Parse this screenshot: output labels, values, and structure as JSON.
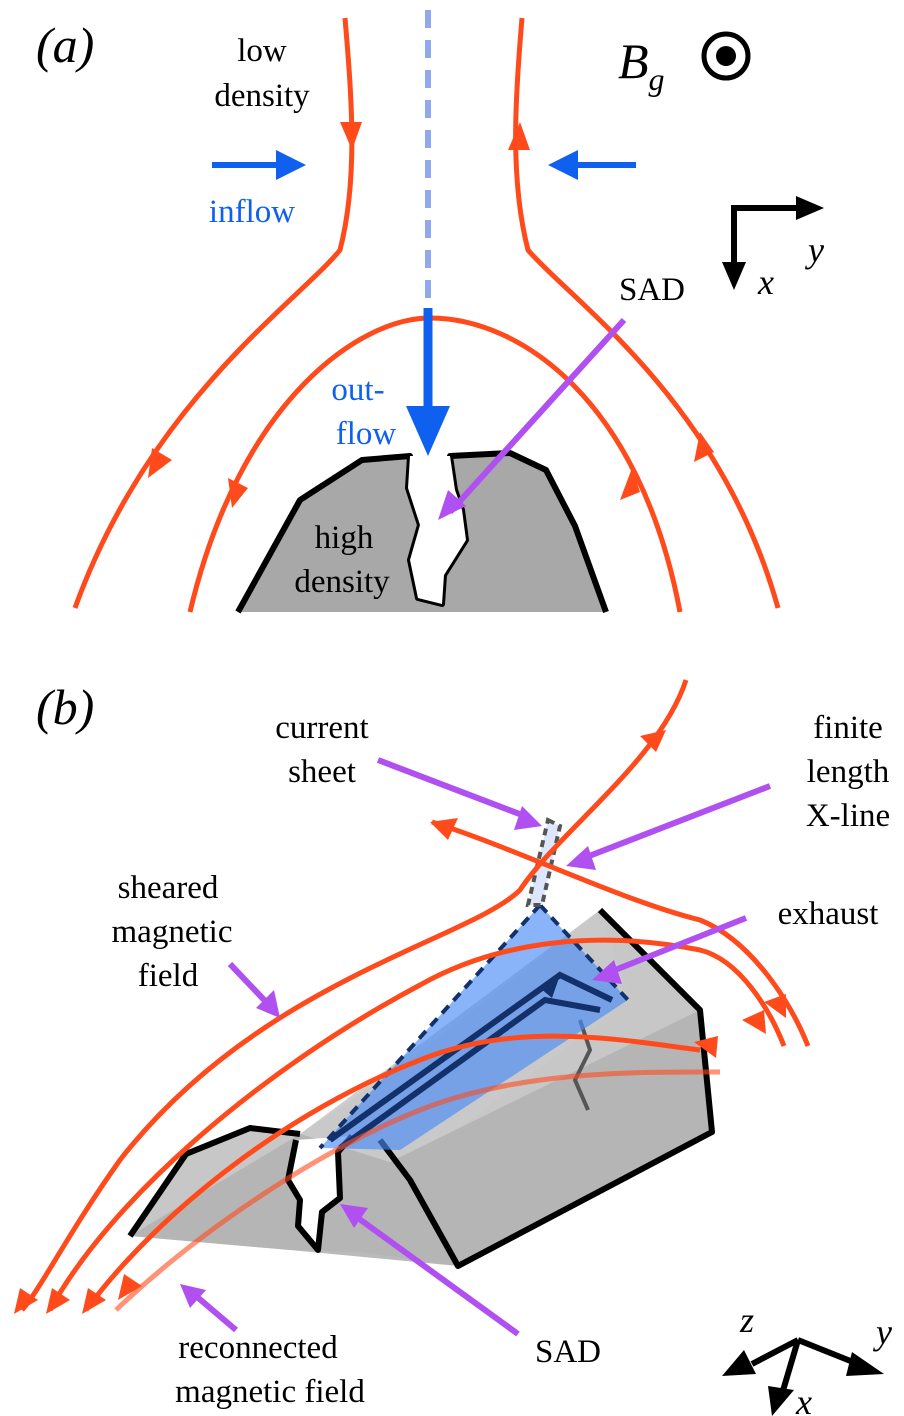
{
  "colors": {
    "field_line": "#ff4a1c",
    "flow_arrow": "#1060f0",
    "dashed_line": "#8fa8ee",
    "pointer": "#b050f0",
    "density": "#a8a8a8",
    "exhaust": "#4a8cf8"
  },
  "panel_a": {
    "label": "(a)",
    "low_density": [
      "low",
      "density"
    ],
    "inflow": "inflow",
    "outflow": [
      "out-",
      "flow"
    ],
    "high_density": [
      "high",
      "density"
    ],
    "sad": "SAD",
    "guide_field": "B",
    "guide_field_sub": "g",
    "axis_x": "x",
    "axis_y": "y"
  },
  "panel_b": {
    "label": "(b)",
    "current_sheet": [
      "current",
      "sheet"
    ],
    "x_line": [
      "finite",
      "length",
      "X-line"
    ],
    "exhaust": "exhaust",
    "sheared_field": [
      "sheared",
      "magnetic",
      "field"
    ],
    "reconnected_field": [
      "reconnected",
      "magnetic field"
    ],
    "sad": "SAD",
    "axis_x": "x",
    "axis_y": "y",
    "axis_z": "z"
  }
}
